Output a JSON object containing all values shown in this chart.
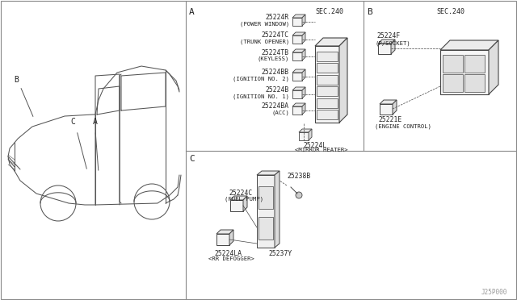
{
  "bg_color": "#ffffff",
  "line_color": "#444444",
  "text_color": "#222222",
  "fig_width": 6.4,
  "fig_height": 3.72,
  "dpi": 100,
  "watermark": "J25P000",
  "section_a_parts": [
    {
      "code": "25224R",
      "desc1": "25224R",
      "desc2": "(POWER WINDOW)"
    },
    {
      "code": "25224TC",
      "desc1": "25224TC",
      "desc2": "(TRUNK OPENER)"
    },
    {
      "code": "25224TB",
      "desc1": "25224TB",
      "desc2": "(KEYLESS)"
    },
    {
      "code": "25224BB",
      "desc1": "25224BB",
      "desc2": "(IGNITION NO. 2)"
    },
    {
      "code": "25224B",
      "desc1": "25224B",
      "desc2": "(IGNITION NO. 1)"
    },
    {
      "code": "25224BA",
      "desc1": "25224BA",
      "desc2": "(ACC)"
    }
  ],
  "section_a_bottom_code": "25224L",
  "section_a_bottom_desc": "<MIRROR HEATER>",
  "section_b_top_code": "25224F",
  "section_b_top_desc": "(P/SOCKET)",
  "section_b_bot_code": "25221E",
  "section_b_bot_desc": "(ENGINE CONTROL)",
  "section_c_fuel_code": "25224C",
  "section_c_fuel_desc": "(FUEL PUMP)",
  "section_c_25238B": "25238B",
  "section_c_la_code": "25224LA",
  "section_c_la_desc": "<RR DEFOGGER>",
  "section_c_25237Y": "25237Y"
}
